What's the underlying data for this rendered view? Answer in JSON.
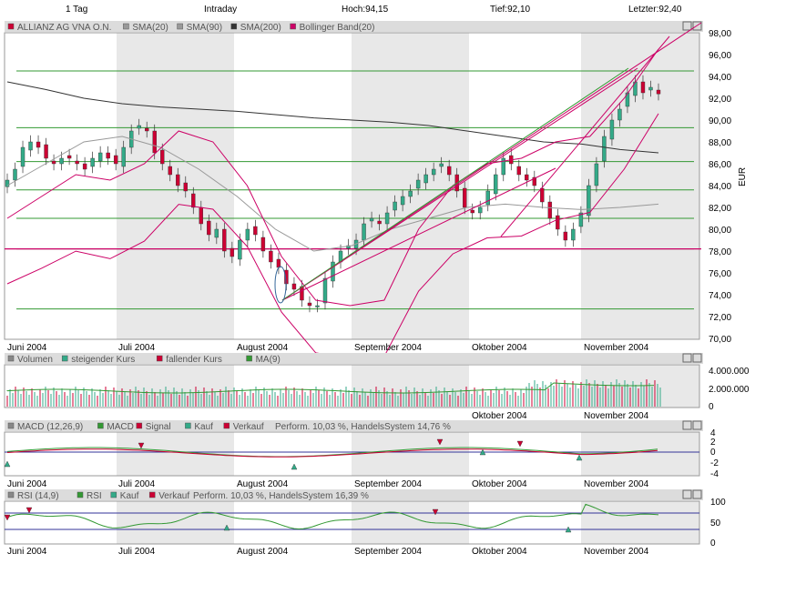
{
  "header": {
    "timeframe": "1 Tag",
    "mode": "Intraday",
    "high": "Hoch:94,15",
    "low": "Tief:92,10",
    "last": "Letzter:92,40"
  },
  "price_pane": {
    "legend": [
      {
        "label": "ALLIANZ AG VNA O.N.",
        "color": "#cc0033"
      },
      {
        "label": "SMA(20)",
        "color": "#999999"
      },
      {
        "label": "SMA(90)",
        "color": "#999999"
      },
      {
        "label": "SMA(200)",
        "color": "#333333"
      },
      {
        "label": "Bollinger Band(20)",
        "color": "#cc0066"
      }
    ],
    "y_ticks": [
      "98,00",
      "96,00",
      "94,00",
      "92,00",
      "90,00",
      "88,00",
      "86,00",
      "84,00",
      "82,00",
      "80,00",
      "78,00",
      "76,00",
      "74,00",
      "72,00",
      "70,00"
    ],
    "y_unit": "EUR"
  },
  "volume_pane": {
    "legend": [
      {
        "label": "Volumen",
        "color": "#888888"
      },
      {
        "label": "steigender Kurs",
        "color": "#33aa88"
      },
      {
        "label": "fallender Kurs",
        "color": "#cc0033"
      },
      {
        "label": "MA(9)",
        "color": "#339933"
      }
    ],
    "y_ticks": [
      "4.000.000",
      "2.000.000",
      "0"
    ]
  },
  "macd_pane": {
    "legend": [
      {
        "label": "MACD (12,26,9)",
        "color": "#888888"
      },
      {
        "label": "MACD",
        "color": "#339933"
      },
      {
        "label": "Signal",
        "color": "#cc0033"
      },
      {
        "label": "Kauf",
        "color": "#33aa88"
      },
      {
        "label": "Verkauf",
        "color": "#cc0033"
      }
    ],
    "perf": "Perform. 10,03 %, HandelsSystem 14,76 %",
    "y_ticks": [
      "4",
      "2",
      "0",
      "-2",
      "-4"
    ]
  },
  "rsi_pane": {
    "legend": [
      {
        "label": "RSI (14,9)",
        "color": "#888888"
      },
      {
        "label": "RSI",
        "color": "#339933"
      },
      {
        "label": "Kauf",
        "color": "#33aa88"
      },
      {
        "label": "Verkauf",
        "color": "#cc0033"
      }
    ],
    "perf": "Perform. 10,03 %, HandelsSystem 16,39 %",
    "y_ticks": [
      "100",
      "50",
      "0"
    ]
  },
  "months": [
    "Juni 2004",
    "Juli 2004",
    "August 2004",
    "September 2004",
    "Oktober 2004",
    "November 2004"
  ],
  "colors": {
    "up": "#33aa88",
    "down": "#cc0033",
    "band": "#cc0066",
    "sma90": "#999999",
    "sma200": "#333333",
    "hline": "#339933",
    "mline": "#cc0066",
    "shade": "#e6e6e6",
    "pane_bg": "#ffffff",
    "panel_border": "#999999"
  },
  "chart_data": {
    "type": "line",
    "title": "ALLIANZ AG VNA O.N.",
    "ylabel": "EUR",
    "ylim": [
      70,
      98
    ],
    "x_labels": [
      "Juni 2004",
      "Juli 2004",
      "August 2004",
      "September 2004",
      "Oktober 2004",
      "November 2004"
    ],
    "series": [
      {
        "name": "ALLIANZ AG VNA O.N.",
        "values": [
          84.5,
          85.5,
          87.5,
          88.0,
          87.5,
          86.5,
          86.0,
          86.5,
          86.5,
          86.0,
          85.5,
          86.5,
          87.0,
          86.5,
          86.0,
          87.5,
          89.0,
          89.5,
          89.0,
          87.0,
          86.0,
          85.0,
          84.0,
          83.5,
          82.0,
          80.5,
          79.5,
          80.0,
          78.0,
          77.5,
          79.0,
          80.0,
          79.5,
          78.0,
          77.0,
          76.5,
          75.0,
          74.5,
          73.5,
          73.0,
          73.0,
          75.5,
          77.0,
          78.0,
          78.5,
          79.0,
          80.5,
          81.0,
          80.5,
          81.5,
          82.5,
          83.0,
          83.5,
          84.5,
          85.0,
          85.5,
          86.0,
          85.0,
          83.5,
          82.0,
          81.5,
          82.0,
          83.5,
          85.0,
          86.5,
          86.0,
          85.0,
          84.5,
          84.0,
          82.5,
          81.0,
          80.0,
          79.0,
          80.0,
          81.5,
          84.0,
          86.0,
          88.5,
          90.0,
          91.0,
          92.5,
          93.5,
          92.5,
          93.0,
          92.4
        ]
      },
      {
        "name": "SMA(200)",
        "values": [
          93.5,
          92.8,
          92.0,
          91.5,
          91.2,
          91.0,
          90.8,
          90.5,
          90.2,
          90.0,
          89.8,
          89.5,
          89.0,
          88.5,
          88.0,
          87.8,
          87.3,
          87.0
        ]
      },
      {
        "name": "SMA(90)",
        "values": [
          84.0,
          86.0,
          88.0,
          88.5,
          87.5,
          85.5,
          83.0,
          80.0,
          78.0,
          78.5,
          80.0,
          81.0,
          82.0,
          82.3,
          82.0,
          81.8,
          82.0,
          82.3
        ]
      },
      {
        "name": "Bollinger Band(20)",
        "values": [
          81.0,
          83.0,
          85.0,
          84.5,
          86.0,
          89.0,
          88.0,
          84.0,
          77.5,
          73.5,
          73.0,
          73.5,
          80.0,
          84.0,
          86.0,
          86.5,
          88.0,
          88.5,
          92.0,
          96.5
        ]
      }
    ],
    "horizontal_lines": [
      94.5,
      89.3,
      86.2,
      83.6,
      81.0,
      78.2,
      72.7
    ],
    "magenta_level": 78.2
  }
}
